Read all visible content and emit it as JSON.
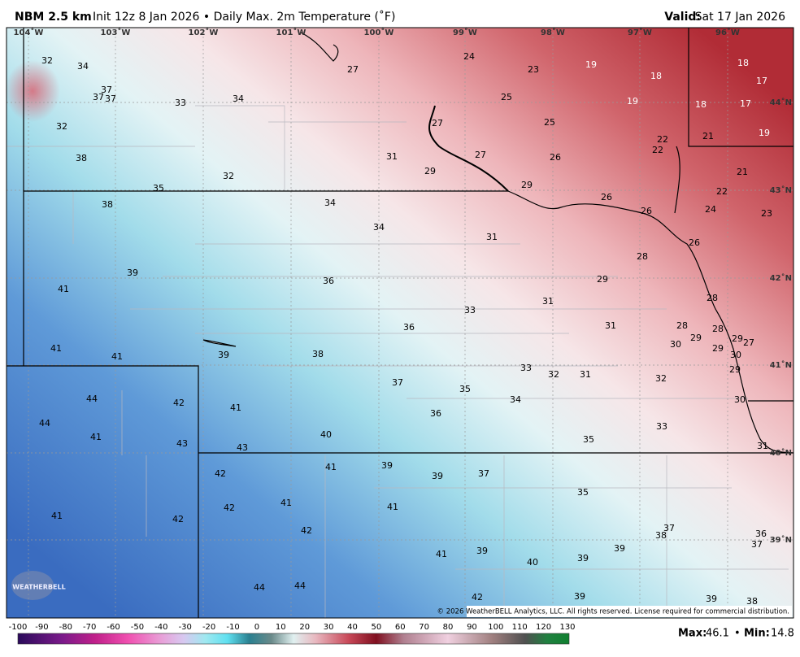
{
  "header": {
    "model": "NBM 2.5 km",
    "init": "Init 12z 8 Jan 2026 • Daily Max. 2m Temperature (˚F)",
    "valid_label": "Valid:",
    "valid_date": "Sat 17 Jan 2026"
  },
  "map": {
    "longitudes": [
      "104˚W",
      "103˚W",
      "102˚W",
      "101˚W",
      "100˚W",
      "99˚W",
      "98˚W",
      "97˚W",
      "96˚W"
    ],
    "latitudes": [
      "44˚N",
      "43˚N",
      "42˚N",
      "41˚N",
      "40˚N",
      "39˚N"
    ],
    "stations": [
      32,
      34,
      37,
      37,
      37,
      33,
      34,
      32,
      27,
      24,
      23,
      19,
      18,
      18,
      17,
      25,
      19,
      18,
      17,
      27,
      25,
      21,
      19,
      22,
      22,
      31,
      27,
      26,
      38,
      29,
      21,
      32,
      35,
      29,
      22,
      26,
      38,
      34,
      24,
      23,
      26,
      34,
      31,
      26,
      28,
      39,
      36,
      29,
      41,
      28,
      31,
      33,
      36,
      31,
      28,
      28,
      29,
      29,
      27,
      30,
      29,
      41,
      41,
      39,
      38,
      30,
      33,
      32,
      31,
      29,
      32,
      37,
      35,
      44,
      42,
      34,
      41,
      30,
      36,
      44,
      41,
      40,
      33,
      43,
      43,
      35,
      31,
      42,
      41,
      39,
      39,
      37,
      35,
      42,
      41,
      41,
      41,
      42,
      42,
      37,
      38,
      36,
      37,
      41,
      39,
      40,
      39,
      39,
      44,
      44,
      42,
      39,
      39,
      38
    ],
    "copyright": "© 2026 WeatherBELL Analytics, LLC. All rights reserved. License required for commercial distribution.",
    "logo": "WEATHERBELL"
  },
  "colorbar": {
    "ticks": [
      -100,
      -90,
      -80,
      -70,
      -60,
      -50,
      -40,
      -30,
      -20,
      -10,
      0,
      10,
      20,
      30,
      40,
      50,
      60,
      70,
      80,
      90,
      100,
      110,
      120,
      130
    ]
  },
  "stats": {
    "max_label": "Max:",
    "max": 46.1,
    "separator": "•",
    "min_label": "Min:",
    "min": 14.8
  }
}
